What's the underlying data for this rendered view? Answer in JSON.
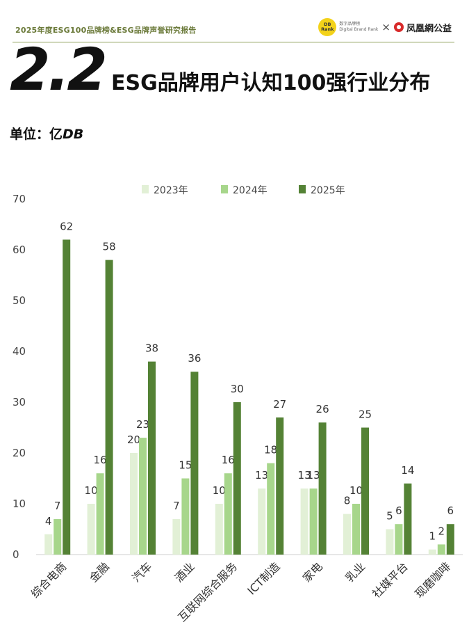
{
  "header": {
    "report_title": "2025年度ESG100品牌榜&ESG品牌声誉研究报告",
    "db_logo": "DB Rank",
    "db_name": "数字品牌榜",
    "db_sub": "Digital Brand Rank",
    "cross": "×",
    "partner_name": "凤凰網公益"
  },
  "section_number": "2.2",
  "page_title": "ESG品牌用户认知100强行业分布",
  "unit_label": "单位：亿",
  "unit_value": "DB",
  "colors": {
    "2023": "#e2f0d6",
    "2024": "#a7d68b",
    "2025": "#548235"
  },
  "chart_data": {
    "type": "bar",
    "categories": [
      "综合电商",
      "金融",
      "汽车",
      "酒业",
      "互联网综合服务",
      "ICT制造",
      "家电",
      "乳业",
      "社媒平台",
      "现磨咖啡"
    ],
    "series": [
      {
        "name": "2023年",
        "values": [
          4,
          10,
          20,
          7,
          10,
          13,
          13,
          8,
          5,
          1
        ]
      },
      {
        "name": "2024年",
        "values": [
          7,
          16,
          23,
          15,
          16,
          18,
          13,
          10,
          6,
          2
        ]
      },
      {
        "name": "2025年",
        "values": [
          62,
          58,
          38,
          36,
          30,
          27,
          26,
          25,
          14,
          6
        ]
      }
    ],
    "ylim": [
      0,
      70
    ],
    "yticks": [
      0,
      10,
      20,
      30,
      40,
      50,
      60,
      70
    ],
    "legend_position": "top-center",
    "grid": false
  }
}
